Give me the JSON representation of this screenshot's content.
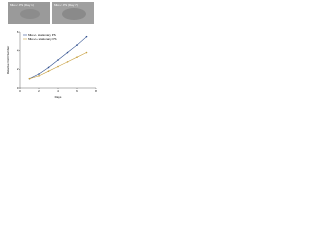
{
  "image_labels": [
    "Mkx-/- PS (Day 1)",
    "Mkx-/- PS (Day 7)"
  ],
  "chart_data": {
    "type": "line",
    "x_label": "Days",
    "y_label": "Relative Cell Number",
    "x": [
      1,
      2,
      3,
      4,
      5,
      6,
      7
    ],
    "series": [
      {
        "name": "Mkx+/- stationary PS",
        "color": "#2f4f8f",
        "values": [
          1,
          1.5,
          2.2,
          3,
          3.8,
          4.6,
          5.5
        ]
      },
      {
        "name": "Mkx+/+ stationary PS",
        "color": "#c8a040",
        "values": [
          1,
          1.3,
          1.8,
          2.3,
          2.8,
          3.3,
          3.8
        ]
      }
    ],
    "xlim": [
      0,
      8
    ],
    "xticks": [
      0,
      2,
      4,
      6,
      8
    ],
    "ylim": [
      0,
      6
    ],
    "yticks": [
      0,
      2,
      4,
      6
    ],
    "legend": "upper-left"
  }
}
